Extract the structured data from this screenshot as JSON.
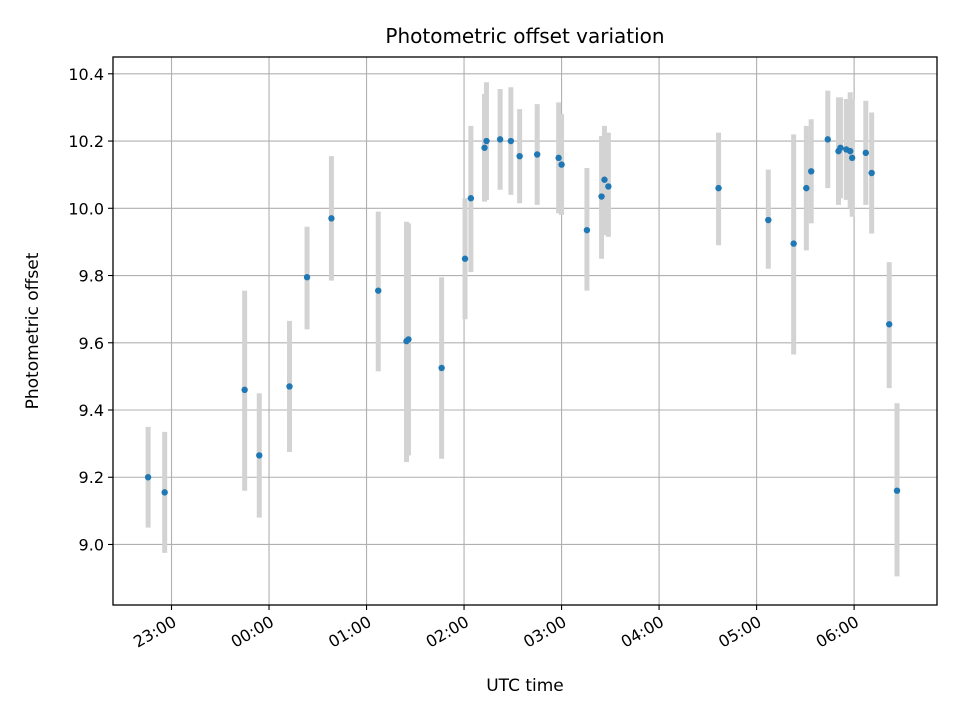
{
  "chart_data": {
    "type": "scatter",
    "title": "Photometric offset variation",
    "xlabel": "UTC time",
    "ylabel": "Photometric offset",
    "x_unit": "hours",
    "xlim": [
      -1.6,
      6.85
    ],
    "ylim": [
      8.82,
      10.45
    ],
    "grid": true,
    "x_ticks": [
      {
        "value": -1.0,
        "label": "23:00"
      },
      {
        "value": 0.0,
        "label": "00:00"
      },
      {
        "value": 1.0,
        "label": "01:00"
      },
      {
        "value": 2.0,
        "label": "02:00"
      },
      {
        "value": 3.0,
        "label": "03:00"
      },
      {
        "value": 4.0,
        "label": "04:00"
      },
      {
        "value": 5.0,
        "label": "05:00"
      },
      {
        "value": 6.0,
        "label": "06:00"
      }
    ],
    "y_ticks": [
      {
        "value": 9.0,
        "label": "9.0"
      },
      {
        "value": 9.2,
        "label": "9.2"
      },
      {
        "value": 9.4,
        "label": "9.4"
      },
      {
        "value": 9.6,
        "label": "9.6"
      },
      {
        "value": 9.8,
        "label": "9.8"
      },
      {
        "value": 10.0,
        "label": "10.0"
      },
      {
        "value": 10.2,
        "label": "10.2"
      },
      {
        "value": 10.4,
        "label": "10.4"
      }
    ],
    "marker_color": "#1f77b4",
    "errorbar_color": "#d3d3d3",
    "points": [
      {
        "x": -1.24,
        "y": 9.2,
        "lo": 9.05,
        "hi": 9.35
      },
      {
        "x": -1.07,
        "y": 9.155,
        "lo": 8.975,
        "hi": 9.335
      },
      {
        "x": -0.25,
        "y": 9.46,
        "lo": 9.16,
        "hi": 9.755
      },
      {
        "x": -0.1,
        "y": 9.265,
        "lo": 9.08,
        "hi": 9.45
      },
      {
        "x": 0.21,
        "y": 9.47,
        "lo": 9.275,
        "hi": 9.665
      },
      {
        "x": 0.39,
        "y": 9.795,
        "lo": 9.64,
        "hi": 9.945
      },
      {
        "x": 0.64,
        "y": 9.97,
        "lo": 9.785,
        "hi": 10.155
      },
      {
        "x": 1.12,
        "y": 9.755,
        "lo": 9.515,
        "hi": 9.99
      },
      {
        "x": 1.41,
        "y": 9.605,
        "lo": 9.245,
        "hi": 9.96
      },
      {
        "x": 1.43,
        "y": 9.61,
        "lo": 9.265,
        "hi": 9.955
      },
      {
        "x": 1.77,
        "y": 9.525,
        "lo": 9.255,
        "hi": 9.795
      },
      {
        "x": 2.01,
        "y": 9.85,
        "lo": 9.67,
        "hi": 10.03
      },
      {
        "x": 2.07,
        "y": 10.03,
        "lo": 9.81,
        "hi": 10.245
      },
      {
        "x": 2.21,
        "y": 10.18,
        "lo": 10.02,
        "hi": 10.34
      },
      {
        "x": 2.23,
        "y": 10.2,
        "lo": 10.025,
        "hi": 10.375
      },
      {
        "x": 2.37,
        "y": 10.205,
        "lo": 10.055,
        "hi": 10.355
      },
      {
        "x": 2.48,
        "y": 10.2,
        "lo": 10.04,
        "hi": 10.36
      },
      {
        "x": 2.57,
        "y": 10.155,
        "lo": 10.015,
        "hi": 10.295
      },
      {
        "x": 2.75,
        "y": 10.16,
        "lo": 10.01,
        "hi": 10.31
      },
      {
        "x": 2.97,
        "y": 10.15,
        "lo": 9.985,
        "hi": 10.315
      },
      {
        "x": 3.0,
        "y": 10.13,
        "lo": 9.98,
        "hi": 10.28
      },
      {
        "x": 3.26,
        "y": 9.935,
        "lo": 9.755,
        "hi": 10.12
      },
      {
        "x": 3.41,
        "y": 10.035,
        "lo": 9.85,
        "hi": 10.215
      },
      {
        "x": 3.44,
        "y": 10.085,
        "lo": 9.92,
        "hi": 10.245
      },
      {
        "x": 3.48,
        "y": 10.065,
        "lo": 9.915,
        "hi": 10.225
      },
      {
        "x": 4.61,
        "y": 10.06,
        "lo": 9.89,
        "hi": 10.225
      },
      {
        "x": 5.12,
        "y": 9.965,
        "lo": 9.82,
        "hi": 10.115
      },
      {
        "x": 5.38,
        "y": 9.895,
        "lo": 9.565,
        "hi": 10.22
      },
      {
        "x": 5.51,
        "y": 10.06,
        "lo": 9.875,
        "hi": 10.245
      },
      {
        "x": 5.56,
        "y": 10.11,
        "lo": 9.955,
        "hi": 10.265
      },
      {
        "x": 5.73,
        "y": 10.205,
        "lo": 10.06,
        "hi": 10.35
      },
      {
        "x": 5.84,
        "y": 10.17,
        "lo": 10.01,
        "hi": 10.33
      },
      {
        "x": 5.86,
        "y": 10.18,
        "lo": 10.03,
        "hi": 10.33
      },
      {
        "x": 5.92,
        "y": 10.175,
        "lo": 10.025,
        "hi": 10.325
      },
      {
        "x": 5.96,
        "y": 10.17,
        "lo": 10.0,
        "hi": 10.345
      },
      {
        "x": 5.98,
        "y": 10.15,
        "lo": 9.975,
        "hi": 10.325
      },
      {
        "x": 6.12,
        "y": 10.165,
        "lo": 10.01,
        "hi": 10.32
      },
      {
        "x": 6.18,
        "y": 10.105,
        "lo": 9.925,
        "hi": 10.285
      },
      {
        "x": 6.36,
        "y": 9.655,
        "lo": 9.465,
        "hi": 9.84
      },
      {
        "x": 6.44,
        "y": 9.16,
        "lo": 8.905,
        "hi": 9.42
      }
    ]
  }
}
